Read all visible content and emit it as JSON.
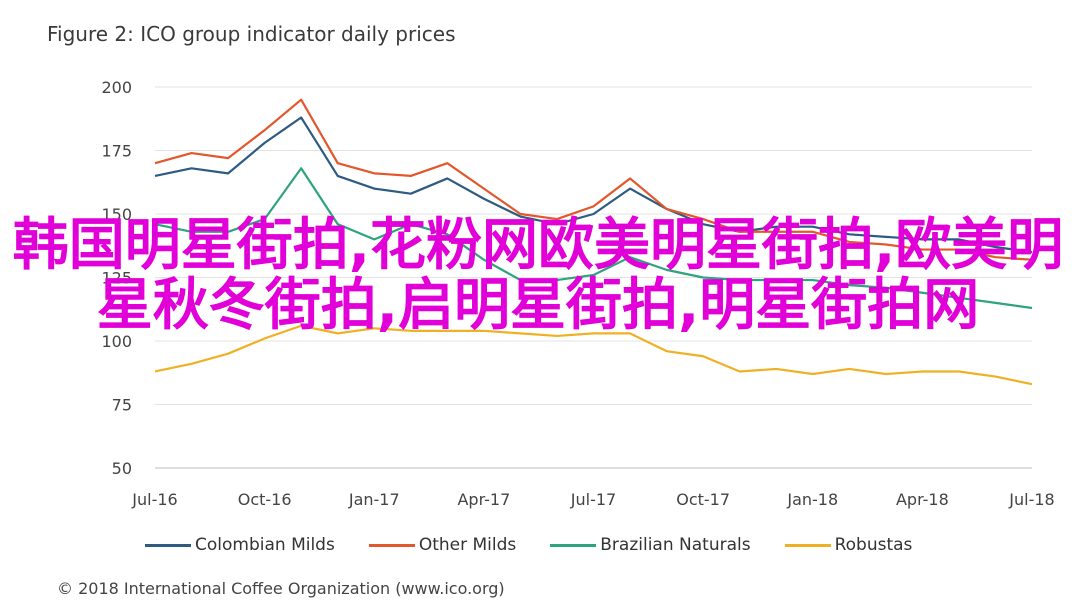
{
  "chart_data": {
    "type": "line",
    "title": "Figure 2: ICO group indicator daily prices",
    "xlabel": "",
    "ylabel": "",
    "x_ticks": [
      "Jul-16",
      "Oct-16",
      "Jan-17",
      "Apr-17",
      "Jul-17",
      "Oct-17",
      "Jan-18",
      "Apr-18",
      "Jul-18"
    ],
    "y_ticks": [
      50,
      75,
      100,
      125,
      150,
      175,
      200
    ],
    "ylim": [
      50,
      200
    ],
    "grid": "horizontal",
    "legend_position": "bottom",
    "x": [
      "Jul-16",
      "Aug-16",
      "Sep-16",
      "Oct-16",
      "Nov-16",
      "Dec-16",
      "Jan-17",
      "Feb-17",
      "Mar-17",
      "Apr-17",
      "May-17",
      "Jun-17",
      "Jul-17",
      "Aug-17",
      "Sep-17",
      "Oct-17",
      "Nov-17",
      "Dec-17",
      "Jan-18",
      "Feb-18",
      "Mar-18",
      "Apr-18",
      "May-18",
      "Jun-18",
      "Jul-18"
    ],
    "series": [
      {
        "name": "Colombian Milds",
        "color": "#2e5b82",
        "values": [
          165,
          168,
          166,
          178,
          188,
          165,
          160,
          158,
          164,
          156,
          149,
          146,
          150,
          160,
          152,
          146,
          143,
          145,
          145,
          142,
          141,
          140,
          140,
          137,
          135
        ]
      },
      {
        "name": "Other Milds",
        "color": "#e2572b",
        "values": [
          170,
          174,
          172,
          183,
          195,
          170,
          166,
          165,
          170,
          160,
          150,
          148,
          153,
          164,
          152,
          148,
          143,
          143,
          143,
          139,
          138,
          136,
          136,
          133,
          132
        ]
      },
      {
        "name": "Brazilian Naturals",
        "color": "#2ea37f",
        "values": [
          146,
          143,
          143,
          148,
          168,
          146,
          140,
          146,
          142,
          132,
          124,
          124,
          126,
          133,
          128,
          125,
          124,
          124,
          124,
          122,
          121,
          119,
          117,
          115,
          113
        ]
      },
      {
        "name": "Robustas",
        "color": "#f0b024",
        "values": [
          88,
          91,
          95,
          101,
          106,
          103,
          105,
          104,
          104,
          104,
          103,
          102,
          103,
          103,
          96,
          94,
          88,
          89,
          87,
          89,
          87,
          88,
          88,
          86,
          83
        ]
      }
    ]
  },
  "overlay_text": "韩国明星街拍,花粉网欧美明星街拍,欧美明星秋冬街拍,启明星街拍,明星街拍网",
  "footer": {
    "copyright": "© 2018 International Coffee Organization (www.ico.org)"
  }
}
